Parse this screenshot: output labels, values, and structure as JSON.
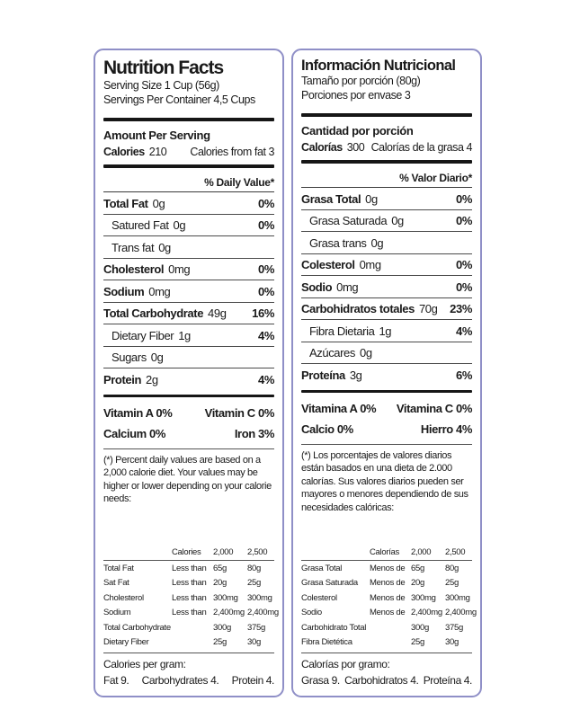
{
  "page": {
    "background_color": "#ffffff",
    "border_color": "#8f8fc7",
    "bar_color": "#161616",
    "text_color": "#1a1a1a"
  },
  "panels": [
    {
      "language": "english",
      "title": "Nutrition Facts",
      "serving_size": "Serving Size  1 Cup (56g)",
      "servings_per_container": "Servings Per Container  4,5 Cups",
      "amount_header": "Amount Per Serving",
      "calories_label": "Calories",
      "calories_value": "210",
      "calories_from_fat": "Calories from fat 3",
      "daily_value_header": "% Daily Value*",
      "nutrients": [
        {
          "name": "Total Fat",
          "amount": "0g",
          "dv": "0%"
        },
        {
          "name": "Satured Fat",
          "amount": "0g",
          "dv": "0%"
        },
        {
          "name": "Trans fat",
          "amount": "0g",
          "dv": ""
        },
        {
          "name": "Cholesterol",
          "amount": "0mg",
          "dv": "0%"
        },
        {
          "name": "Sodium",
          "amount": "0mg",
          "dv": "0%"
        },
        {
          "name": "Total Carbohydrate",
          "amount": "49g",
          "dv": "16%"
        },
        {
          "name": "Dietary Fiber",
          "amount": "1g",
          "dv": "4%"
        },
        {
          "name": "Sugars",
          "amount": "0g",
          "dv": ""
        },
        {
          "name": "Protein",
          "amount": "2g",
          "dv": "4%"
        }
      ],
      "vitamins": [
        {
          "left": "Vitamin A  0%",
          "right": "Vitamin C  0%"
        },
        {
          "left": "Calcium  0%",
          "right": "Iron 3%"
        }
      ],
      "footnote": "(*) Percent daily values are based on a 2,000 calorie diet. Your values may be higher or lower depending on your calorie needs:",
      "ref_table": {
        "header": [
          "Calories",
          "2,000",
          "2,500"
        ],
        "rows": [
          [
            "Total Fat",
            "Less than",
            "65g",
            "80g"
          ],
          [
            "Sat Fat",
            "Less than",
            "20g",
            "25g"
          ],
          [
            "Cholesterol",
            "Less than",
            "300mg",
            "300mg"
          ],
          [
            "Sodium",
            "Less than",
            "2,400mg",
            "2,400mg"
          ],
          [
            "Total Carbohydrate",
            "",
            "300g",
            "375g"
          ],
          [
            "Dietary Fiber",
            "",
            "25g",
            "30g"
          ]
        ]
      },
      "cal_per_gram_label": "Calories per gram:",
      "cal_per_gram_values": [
        "Fat 9.",
        "Carbohydrates 4.",
        "Protein 4."
      ]
    },
    {
      "language": "spanish",
      "title": "Información Nutricional",
      "serving_size": "Tamaño por porción (80g)",
      "servings_per_container": "Porciones por envase 3",
      "amount_header": "Cantidad por porción",
      "calories_label": "Calorías",
      "calories_value": "300",
      "calories_from_fat": "Calorías de la grasa 4",
      "daily_value_header": "% Valor Diario*",
      "nutrients": [
        {
          "name": "Grasa Total",
          "amount": "0g",
          "dv": "0%"
        },
        {
          "name": "Grasa Saturada",
          "amount": "0g",
          "dv": "0%"
        },
        {
          "name": "Grasa trans",
          "amount": "0g",
          "dv": ""
        },
        {
          "name": "Colesterol",
          "amount": "0mg",
          "dv": "0%"
        },
        {
          "name": "Sodio",
          "amount": "0mg",
          "dv": "0%"
        },
        {
          "name": "Carbohidratos totales",
          "amount": "70g",
          "dv": "23%"
        },
        {
          "name": "Fibra Dietaria",
          "amount": "1g",
          "dv": "4%"
        },
        {
          "name": "Azúcares",
          "amount": "0g",
          "dv": ""
        },
        {
          "name": "Proteína",
          "amount": "3g",
          "dv": "6%"
        }
      ],
      "vitamins": [
        {
          "left": "Vitamina A  0%",
          "right": "Vitamina C  0%"
        },
        {
          "left": "Calcio  0%",
          "right": "Hierro 4%"
        }
      ],
      "footnote": "(*) Los porcentajes de valores diarios están basados en una dieta de 2.000 calorías. Sus valores diarios pueden ser mayores o menores dependiendo de sus necesidades calóricas:",
      "ref_table": {
        "header": [
          "Calorías",
          "2,000",
          "2,500"
        ],
        "rows": [
          [
            "Grasa Total",
            "Menos de",
            "65g",
            "80g"
          ],
          [
            "Grasa Saturada",
            "Menos de",
            "20g",
            "25g"
          ],
          [
            "Colesterol",
            "Menos de",
            "300mg",
            "300mg"
          ],
          [
            "Sodio",
            "Menos de",
            "2,400mg",
            "2,400mg"
          ],
          [
            "Carbohidrato Total",
            "",
            "300g",
            "375g"
          ],
          [
            "Fibra Dietética",
            "",
            "25g",
            "30g"
          ]
        ]
      },
      "cal_per_gram_label": "Calorías por gramo:",
      "cal_per_gram_values": [
        "Grasa 9.",
        "Carbohidratos 4.",
        "Proteína 4."
      ]
    }
  ]
}
